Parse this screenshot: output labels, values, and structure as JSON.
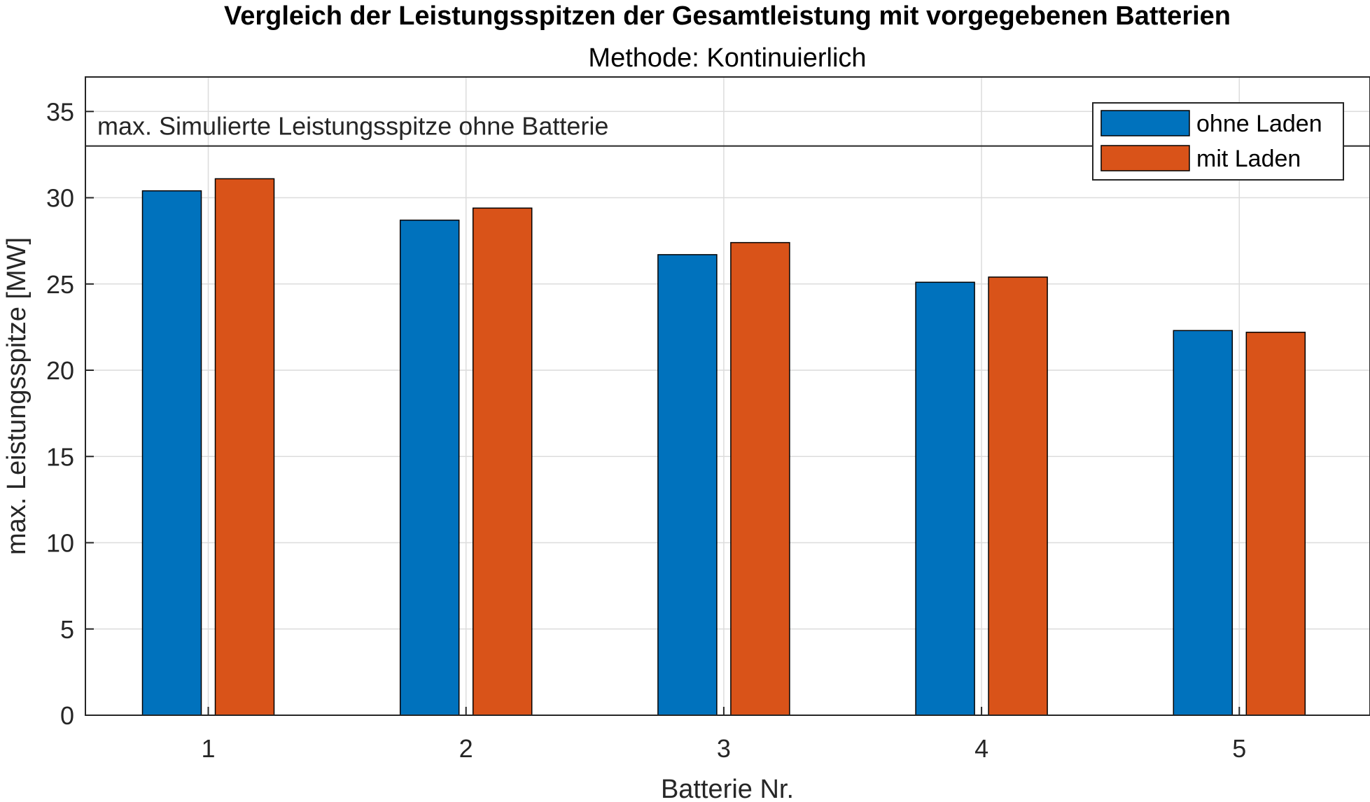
{
  "chart_data": {
    "type": "bar",
    "title": "Vergleich der Leistungsspitzen der Gesamtleistung mit vorgegebenen Batterien",
    "subtitle": "Methode: Kontinuierlich",
    "xlabel": "Batterie Nr.",
    "ylabel": "max. Leistungsspitze [MW]",
    "categories": [
      "1",
      "2",
      "3",
      "4",
      "5"
    ],
    "series": [
      {
        "name": "ohne Laden",
        "color": "#0072BD",
        "values": [
          30.4,
          28.7,
          26.7,
          25.1,
          22.3
        ]
      },
      {
        "name": "mit Laden",
        "color": "#D95319",
        "values": [
          31.1,
          29.4,
          27.4,
          25.4,
          22.2
        ]
      }
    ],
    "ylim": [
      0,
      37
    ],
    "yticks": [
      0,
      5,
      10,
      15,
      20,
      25,
      30,
      35
    ],
    "grid": true,
    "legend_position": "top-right",
    "reference_line": {
      "value": 33,
      "label": "max. Simulierte Leistungsspitze ohne Batterie"
    }
  }
}
